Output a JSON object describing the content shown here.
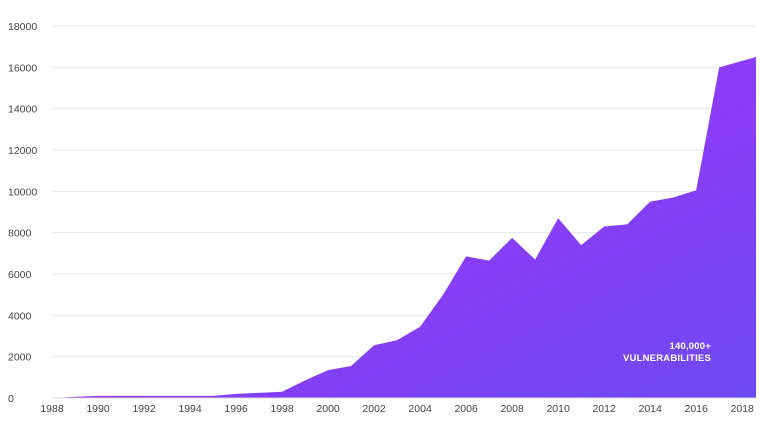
{
  "colors": {
    "area_left": "#8a3ff0",
    "area_mid": "#8a3cf6",
    "area_right": "#6d4af2",
    "grid": "#e6e6e6",
    "tick_text": "#444444",
    "annotation_text": "#ffffff"
  },
  "chart_data": {
    "type": "area",
    "title": "",
    "xlabel": "",
    "ylabel": "",
    "ylim": [
      0,
      18000
    ],
    "xlim": [
      1988,
      2018.6
    ],
    "grid": true,
    "y_ticks": [
      0,
      2000,
      4000,
      6000,
      8000,
      10000,
      12000,
      14000,
      16000,
      18000
    ],
    "x_ticks": [
      1988,
      1990,
      1992,
      1994,
      1996,
      1998,
      2000,
      2002,
      2004,
      2006,
      2008,
      2010,
      2012,
      2014,
      2016,
      2018
    ],
    "series": [
      {
        "x": [
          1988,
          1989,
          1990,
          1991,
          1992,
          1993,
          1994,
          1995,
          1996,
          1997,
          1998,
          1999,
          2000,
          2001,
          2002,
          2003,
          2004,
          2005,
          2006,
          2007,
          2008,
          2009,
          2010,
          2011,
          2012,
          2013,
          2014,
          2015,
          2016,
          2017,
          2018.6
        ],
        "values": [
          0,
          60,
          100,
          100,
          100,
          100,
          100,
          100,
          200,
          250,
          300,
          850,
          1350,
          1550,
          2550,
          2800,
          3450,
          5000,
          6850,
          6650,
          7750,
          6700,
          8700,
          7400,
          8300,
          8400,
          9500,
          9700,
          10050,
          16000,
          16500
        ]
      }
    ],
    "annotation": {
      "line1": "140,000+",
      "line2": "VULNERABILITIES"
    }
  }
}
